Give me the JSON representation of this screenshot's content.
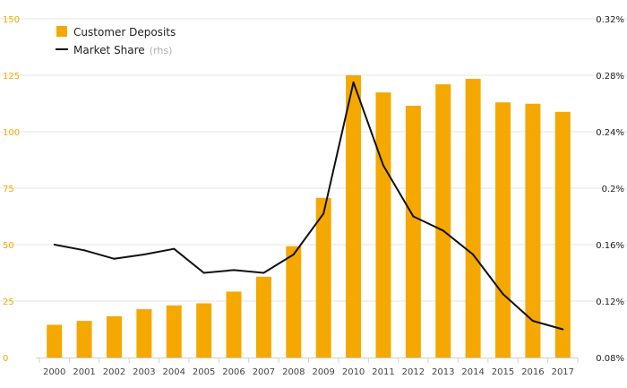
{
  "chart_data": {
    "type": "bar",
    "categories": [
      "2000",
      "2001",
      "2002",
      "2003",
      "2004",
      "2005",
      "2006",
      "2007",
      "2008",
      "2009",
      "2010",
      "2011",
      "2012",
      "2013",
      "2014",
      "2015",
      "2016",
      "2017"
    ],
    "series": [
      {
        "name": "Customer Deposits",
        "kind": "bar",
        "axis": "left",
        "color": "#f5a800",
        "values": [
          14.5,
          16.2,
          18.3,
          21.4,
          23.1,
          24.0,
          29.2,
          35.8,
          49.3,
          70.7,
          125.0,
          117.4,
          111.5,
          121.0,
          123.4,
          113.0,
          112.4,
          108.8
        ]
      },
      {
        "name": "Market Share",
        "kind": "line",
        "axis": "right",
        "color": "#111111",
        "values": [
          0.16,
          0.156,
          0.15,
          0.153,
          0.157,
          0.14,
          0.142,
          0.14,
          0.153,
          0.182,
          0.275,
          0.216,
          0.18,
          0.17,
          0.153,
          0.125,
          0.106,
          0.1
        ]
      }
    ],
    "left_axis": {
      "range": [
        0,
        150
      ],
      "ticks": [
        0,
        25,
        50,
        75,
        100,
        125,
        150
      ],
      "tick_labels": [
        "0",
        "25",
        "50",
        "75",
        "100",
        "125",
        "150"
      ]
    },
    "right_axis": {
      "range": [
        0.08,
        0.32
      ],
      "ticks": [
        0.08,
        0.12,
        0.16,
        0.2,
        0.24,
        0.28,
        0.32
      ],
      "tick_labels": [
        "0.08%",
        "0.12%",
        "0.16%",
        "0.2%",
        "0.24%",
        "0.28%",
        "0.32%"
      ]
    },
    "legend": [
      {
        "label": "Customer Deposits",
        "suffix": "",
        "marker": "square",
        "color": "#f5a800"
      },
      {
        "label": "Market Share",
        "suffix": "(rhs)",
        "marker": "line",
        "color": "#111111"
      }
    ],
    "legend_position": "top-left",
    "grid": true
  }
}
